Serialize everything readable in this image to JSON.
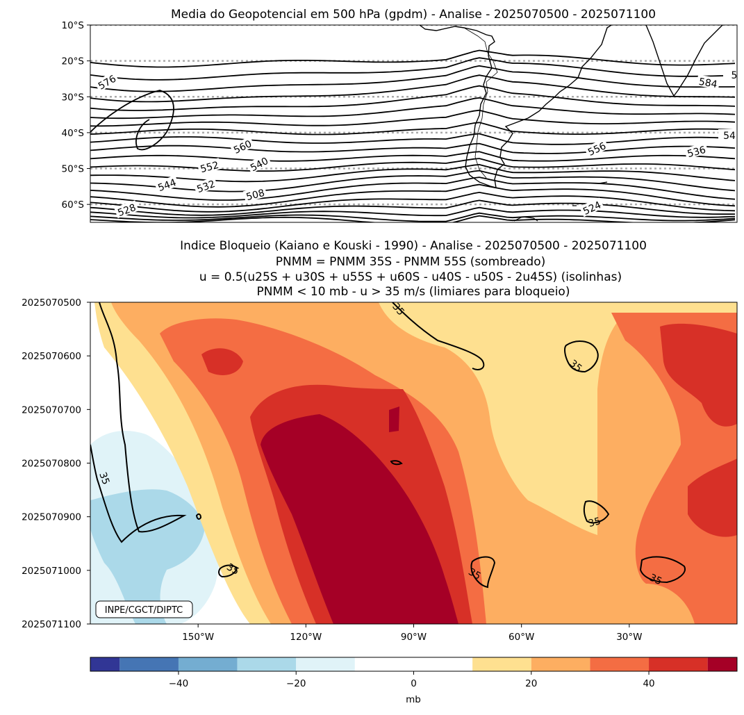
{
  "chart_data": [
    {
      "type": "contour",
      "title": "Media do Geopotencial em 500 hPa (gpdm) - Analise - 2025070500 - 2025071100",
      "y_tick_labels": [
        "10°S",
        "20°S",
        "30°S",
        "40°S",
        "50°S",
        "60°S"
      ],
      "y_lat_values": [
        -10,
        -20,
        -30,
        -40,
        -50,
        -60
      ],
      "ylim": [
        -65,
        -10
      ],
      "contour_labels": [
        "576",
        "584",
        "5",
        "560",
        "552",
        "540",
        "544",
        "532",
        "508",
        "528",
        "556",
        "536",
        "54",
        "524"
      ],
      "contour_levels_gpdm": [
        508,
        512,
        516,
        520,
        524,
        528,
        532,
        536,
        540,
        544,
        548,
        552,
        556,
        560,
        564,
        568,
        572,
        576,
        580,
        584,
        588
      ],
      "grid": "dotted gray latitude lines every 10°"
    },
    {
      "type": "hovmoller",
      "title_lines": [
        "Indice Bloqueio (Kaiano e Kouski - 1990) - Analise - 2025070500 - 2025071100",
        "PNMM = PNMM 35S - PNMM 55S (sombreado)",
        "u = 0.5(u25S + u30S + u55S + u60S - u40S - u50S - 2u45S) (isolinhas)",
        "PNMM < 10 mb - u > 35 m/s (limiares para bloqueio)"
      ],
      "y_tick_labels": [
        "2025070500",
        "2025070600",
        "2025070700",
        "2025070800",
        "2025070900",
        "2025071000",
        "2025071100"
      ],
      "x_tick_labels": [
        "150°W",
        "120°W",
        "90°W",
        "60°W",
        "30°W"
      ],
      "x_lon_values": [
        -150,
        -120,
        -90,
        -60,
        -30
      ],
      "xlim": [
        -180,
        0
      ],
      "contour_level_ms": 35,
      "contour_labels": [
        "35",
        "35",
        "35",
        "35",
        "35",
        "35",
        "35"
      ],
      "credit": "INPE/CGCT/DIPTC"
    },
    {
      "type": "colorbar",
      "levels": [
        -55,
        -50,
        -40,
        -30,
        -20,
        -10,
        10,
        20,
        30,
        40,
        50,
        55
      ],
      "colors": [
        "#313695",
        "#4575b4",
        "#74add1",
        "#abd9e9",
        "#e0f3f8",
        "#ffffff",
        "#fee090",
        "#fdae61",
        "#f46d43",
        "#d73027",
        "#a50026"
      ],
      "tick_values": [
        -40,
        -20,
        0,
        20,
        40
      ],
      "tick_labels": [
        "−40",
        "−20",
        "0",
        "20",
        "40"
      ],
      "label": "mb"
    }
  ]
}
